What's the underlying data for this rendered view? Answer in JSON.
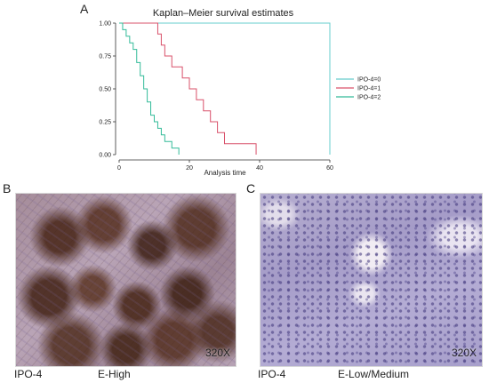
{
  "panel_labels": {
    "a": "A",
    "b": "B",
    "c": "C"
  },
  "chart_data": {
    "type": "line",
    "step": true,
    "title": "Kaplan–Meier survival estimates",
    "xlabel": "Analysis time",
    "ylabel": "",
    "xlim": [
      0,
      60
    ],
    "ylim": [
      0,
      1
    ],
    "x_ticks": [
      0,
      20,
      40,
      60
    ],
    "y_ticks": [
      0,
      0.25,
      0.5,
      0.75,
      1
    ],
    "y_tick_labels": [
      "0.00",
      "0.25",
      "0.50",
      "0.75",
      "1.00"
    ],
    "grid": false,
    "legend_position": "right",
    "series": [
      {
        "name": "IPO-4=0",
        "color": "#66cccc",
        "x": [
          0,
          60,
          60
        ],
        "y": [
          1.0,
          1.0,
          0.0
        ]
      },
      {
        "name": "IPO-4=1",
        "color": "#d9506a",
        "x": [
          0,
          10,
          11,
          12,
          13,
          15,
          18,
          20,
          22,
          24,
          26,
          28,
          30,
          33,
          36,
          39
        ],
        "y": [
          1.0,
          1.0,
          0.917,
          0.833,
          0.75,
          0.667,
          0.583,
          0.5,
          0.417,
          0.333,
          0.25,
          0.167,
          0.083,
          0.083,
          0.083,
          0.0
        ]
      },
      {
        "name": "IPO-4=2",
        "color": "#33bb99",
        "x": [
          0,
          1,
          2,
          3,
          4,
          5,
          6,
          7,
          8,
          9,
          10,
          11,
          12,
          13,
          14,
          15,
          16,
          17
        ],
        "y": [
          1.0,
          0.95,
          0.9,
          0.85,
          0.8,
          0.7,
          0.6,
          0.5,
          0.4,
          0.3,
          0.25,
          0.2,
          0.15,
          0.1,
          0.1,
          0.05,
          0.05,
          0.0
        ]
      }
    ]
  },
  "panel_b": {
    "magnification": "320X",
    "marker": "IPO-4",
    "level": "E-High"
  },
  "panel_c": {
    "magnification": "320X",
    "marker": "IPO-4",
    "level": "E-Low/Medium"
  }
}
